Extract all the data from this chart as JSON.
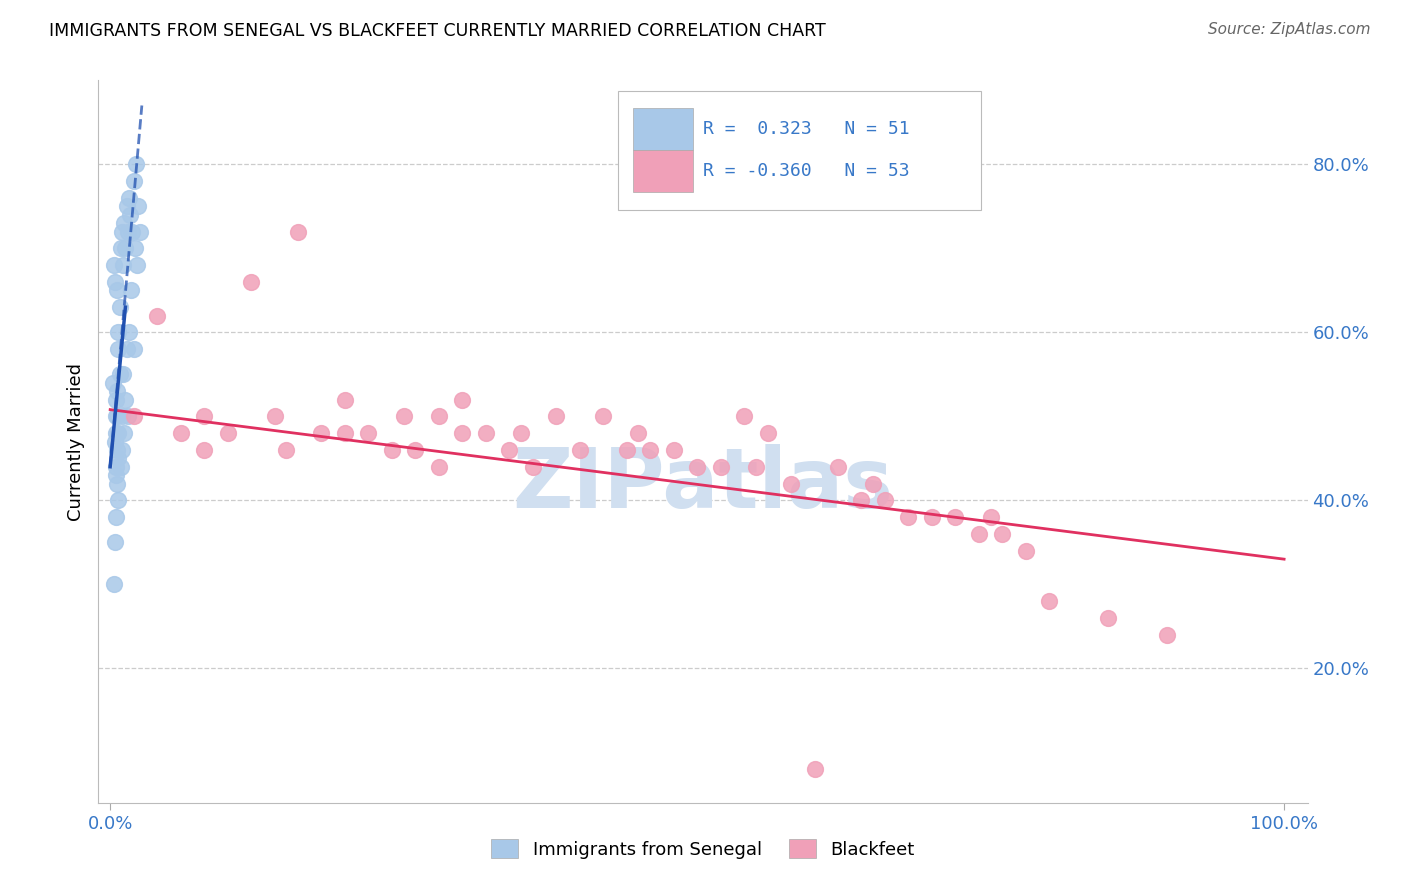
{
  "title": "IMMIGRANTS FROM SENEGAL VS BLACKFEET CURRENTLY MARRIED CORRELATION CHART",
  "source": "Source: ZipAtlas.com",
  "ylabel": "Currently Married",
  "R_senegal": 0.323,
  "N_senegal": 51,
  "R_blackfeet": -0.36,
  "N_blackfeet": 53,
  "xlim": [
    -0.01,
    1.02
  ],
  "ylim": [
    0.04,
    0.9
  ],
  "yticks": [
    0.2,
    0.4,
    0.6,
    0.8
  ],
  "ytick_labels": [
    "20.0%",
    "40.0%",
    "60.0%",
    "80.0%"
  ],
  "color_senegal": "#a8c8e8",
  "color_blackfeet": "#f0a0b8",
  "trendline_senegal_color": "#2050b0",
  "trendline_blackfeet_color": "#e03060",
  "background_color": "#ffffff",
  "axis_label_color": "#3878c8",
  "legend_blue": "#3878c8",
  "watermark_color": "#d0dff0",
  "senegal_x": [
    0.002,
    0.003,
    0.003,
    0.004,
    0.004,
    0.004,
    0.005,
    0.005,
    0.005,
    0.005,
    0.005,
    0.005,
    0.006,
    0.006,
    0.006,
    0.006,
    0.006,
    0.007,
    0.007,
    0.007,
    0.007,
    0.007,
    0.008,
    0.008,
    0.009,
    0.009,
    0.01,
    0.01,
    0.01,
    0.011,
    0.011,
    0.012,
    0.012,
    0.013,
    0.013,
    0.014,
    0.014,
    0.015,
    0.015,
    0.016,
    0.016,
    0.017,
    0.018,
    0.019,
    0.02,
    0.02,
    0.021,
    0.022,
    0.023,
    0.024,
    0.025
  ],
  "senegal_y": [
    0.54,
    0.3,
    0.68,
    0.47,
    0.35,
    0.66,
    0.43,
    0.5,
    0.52,
    0.48,
    0.44,
    0.38,
    0.46,
    0.5,
    0.53,
    0.42,
    0.65,
    0.58,
    0.6,
    0.48,
    0.45,
    0.4,
    0.63,
    0.55,
    0.7,
    0.44,
    0.72,
    0.5,
    0.46,
    0.68,
    0.55,
    0.73,
    0.48,
    0.7,
    0.52,
    0.75,
    0.58,
    0.72,
    0.5,
    0.76,
    0.6,
    0.74,
    0.65,
    0.72,
    0.78,
    0.58,
    0.7,
    0.8,
    0.68,
    0.75,
    0.72
  ],
  "blackfeet_x": [
    0.02,
    0.04,
    0.06,
    0.08,
    0.08,
    0.1,
    0.12,
    0.14,
    0.15,
    0.16,
    0.18,
    0.2,
    0.2,
    0.22,
    0.24,
    0.25,
    0.26,
    0.28,
    0.28,
    0.3,
    0.3,
    0.32,
    0.34,
    0.35,
    0.36,
    0.38,
    0.4,
    0.42,
    0.44,
    0.45,
    0.46,
    0.48,
    0.5,
    0.52,
    0.54,
    0.55,
    0.56,
    0.58,
    0.6,
    0.62,
    0.64,
    0.65,
    0.66,
    0.68,
    0.7,
    0.72,
    0.74,
    0.75,
    0.76,
    0.78,
    0.8,
    0.85,
    0.9
  ],
  "blackfeet_y": [
    0.5,
    0.62,
    0.48,
    0.5,
    0.46,
    0.48,
    0.66,
    0.5,
    0.46,
    0.72,
    0.48,
    0.52,
    0.48,
    0.48,
    0.46,
    0.5,
    0.46,
    0.5,
    0.44,
    0.52,
    0.48,
    0.48,
    0.46,
    0.48,
    0.44,
    0.5,
    0.46,
    0.5,
    0.46,
    0.48,
    0.46,
    0.46,
    0.44,
    0.44,
    0.5,
    0.44,
    0.48,
    0.42,
    0.08,
    0.44,
    0.4,
    0.42,
    0.4,
    0.38,
    0.38,
    0.38,
    0.36,
    0.38,
    0.36,
    0.34,
    0.28,
    0.26,
    0.24
  ],
  "blackfeet_trendline_x": [
    0.0,
    1.0
  ],
  "blackfeet_trendline_y": [
    0.508,
    0.33
  ]
}
